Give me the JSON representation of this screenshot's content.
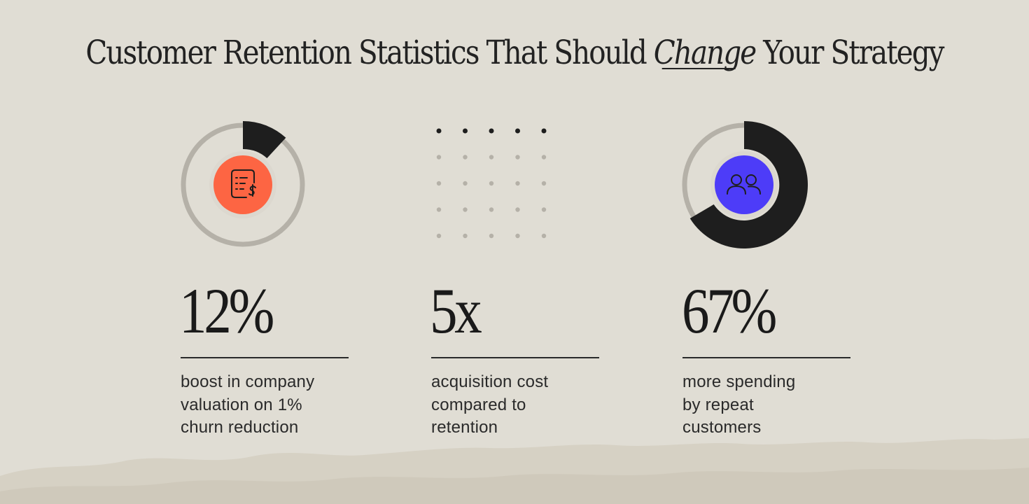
{
  "title": {
    "prefix": "Customer Retention Statistics That Should ",
    "emphasis": "Change",
    "suffix": " Your Strategy"
  },
  "colors": {
    "background": "#e0ddd4",
    "dark": "#1e1e1e",
    "track": "#b5b1a8",
    "accent_orange": "#fd6543",
    "accent_blue": "#4d3cf8"
  },
  "stats": [
    {
      "value": "12%",
      "fill_fraction": 0.12,
      "icon": "receipt-dollar-icon",
      "icon_color": "#fd6543",
      "description_lines": [
        "boost in company",
        "valuation on 1%",
        "churn reduction"
      ]
    },
    {
      "value": "5x",
      "dots": {
        "rows": 5,
        "cols": 5,
        "dark_rows": 1
      },
      "description_lines": [
        "acquisition cost",
        "compared to",
        "retention"
      ]
    },
    {
      "value": "67%",
      "fill_fraction": 0.67,
      "icon": "users-icon",
      "icon_color": "#4d3cf8",
      "description_lines": [
        "more spending",
        "by repeat",
        "customers"
      ]
    }
  ]
}
